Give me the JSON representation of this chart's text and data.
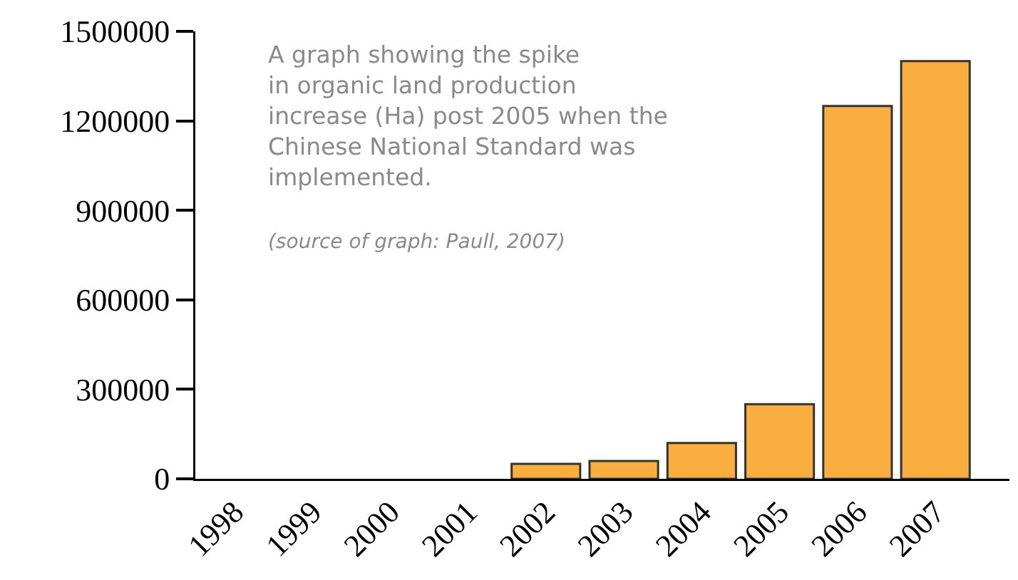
{
  "chart_data": {
    "type": "bar",
    "categories": [
      "1998",
      "1999",
      "2000",
      "2001",
      "2002",
      "2003",
      "2004",
      "2005",
      "2006",
      "2007"
    ],
    "values": [
      0,
      0,
      0,
      0,
      50000,
      60000,
      120000,
      250000,
      1250000,
      1400000
    ],
    "color": "#f9ae3f",
    "ylim": [
      0,
      1500000
    ],
    "yticks": [
      0,
      300000,
      600000,
      900000,
      1200000,
      1500000
    ],
    "grid": false,
    "annotations": [
      "A graph showing the spike\nin organic land production\nincrease (Ha) post 2005 when the\nChinese National Standard was\nimplemented.",
      "(source of graph: Paull, 2007)"
    ]
  }
}
